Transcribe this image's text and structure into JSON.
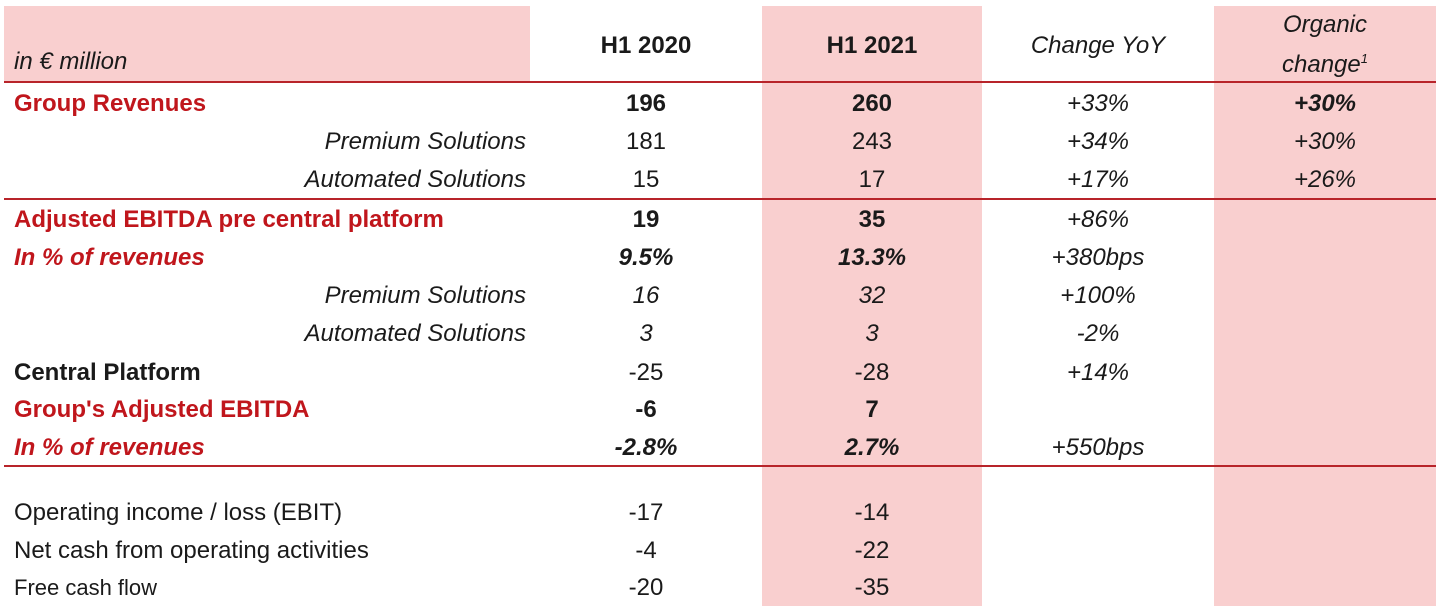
{
  "header": {
    "unit": "in  € million",
    "h1_2020": "H1 2020",
    "h1_2021": "H1 2021",
    "change_yoy": "Change YoY",
    "organic_line1": "Organic",
    "organic_line2": "change",
    "organic_footnote": "1"
  },
  "rows": [
    {
      "label": "Group Revenues",
      "h1_2020": "196",
      "h1_2021": "260",
      "change_yoy": "+33%",
      "organic": "+30%"
    },
    {
      "label": "Premium Solutions",
      "h1_2020": "181",
      "h1_2021": "243",
      "change_yoy": "+34%",
      "organic": "+30%"
    },
    {
      "label": "Automated Solutions",
      "h1_2020": "15",
      "h1_2021": "17",
      "change_yoy": "+17%",
      "organic": "+26%"
    },
    {
      "label": "Adjusted EBITDA pre central platform",
      "h1_2020": "19",
      "h1_2021": "35",
      "change_yoy": "+86%",
      "organic": ""
    },
    {
      "label": "In % of revenues",
      "h1_2020": "9.5%",
      "h1_2021": "13.3%",
      "change_yoy": "+380bps",
      "organic": ""
    },
    {
      "label": "Premium Solutions",
      "h1_2020": "16",
      "h1_2021": "32",
      "change_yoy": "+100%",
      "organic": ""
    },
    {
      "label": "Automated Solutions",
      "h1_2020": "3",
      "h1_2021": "3",
      "change_yoy": "-2%",
      "organic": ""
    },
    {
      "label": "Central Platform",
      "h1_2020": "-25",
      "h1_2021": "-28",
      "change_yoy": "+14%",
      "organic": ""
    },
    {
      "label": "Group's Adjusted EBITDA",
      "h1_2020": "-6",
      "h1_2021": "7",
      "change_yoy": "",
      "organic": ""
    },
    {
      "label": "In % of revenues",
      "h1_2020": "-2.8%",
      "h1_2021": "2.7%",
      "change_yoy": "+550bps",
      "organic": ""
    },
    {
      "label": "Operating income / loss (EBIT)",
      "h1_2020": "-17",
      "h1_2021": "-14",
      "change_yoy": "",
      "organic": ""
    },
    {
      "label": "Net cash from operating activities",
      "h1_2020": "-4",
      "h1_2021": "-22",
      "change_yoy": "",
      "organic": ""
    },
    {
      "label": "Free cash flow",
      "h1_2020": "-20",
      "h1_2021": "-35",
      "change_yoy": "",
      "organic": ""
    }
  ],
  "colors": {
    "accent_red": "#c0161c",
    "band_pink": "#f9cfcf",
    "rule": "#b8242a"
  }
}
